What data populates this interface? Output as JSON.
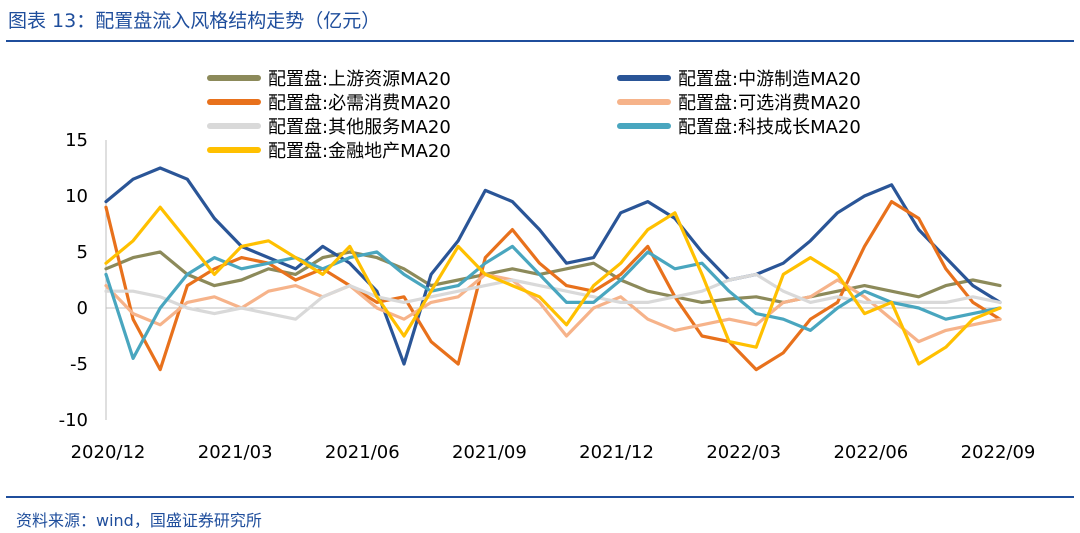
{
  "header": {
    "title": "图表 13：配置盘流入风格结构走势（亿元）"
  },
  "footer": {
    "source": "资料来源：wind，国盛证券研究所"
  },
  "chart_data": {
    "type": "line",
    "title": "配置盘流入风格结构走势（亿元）",
    "xlabel": "",
    "ylabel": "",
    "ylim": [
      -10,
      15
    ],
    "yticks": [
      15,
      10,
      5,
      0,
      -5,
      -10
    ],
    "xticks": [
      "2020/12",
      "2021/03",
      "2021/06",
      "2021/09",
      "2021/12",
      "2022/03",
      "2022/06",
      "2022/09"
    ],
    "grid": false,
    "legend_position": "top",
    "series": [
      {
        "name": "配置盘:上游资源MA20",
        "color": "#8c8a5a",
        "values": [
          3.5,
          4.5,
          5,
          3,
          2,
          2.5,
          3.5,
          3,
          4.5,
          5,
          4.5,
          3.5,
          2,
          2.5,
          3,
          3.5,
          3,
          3.5,
          4,
          2.5,
          1.5,
          1,
          0.5,
          0.8,
          1,
          0.5,
          1,
          1.5,
          2,
          1.5,
          1,
          2,
          2.5,
          2
        ]
      },
      {
        "name": "配置盘:中游制造MA20",
        "color": "#2a5597",
        "values": [
          9.5,
          11.5,
          12.5,
          11.5,
          8,
          5.5,
          4.5,
          3.5,
          5.5,
          4,
          1.5,
          -5,
          3,
          6,
          10.5,
          9.5,
          7,
          4,
          4.5,
          8.5,
          9.5,
          8,
          5,
          2.5,
          3,
          4,
          6,
          8.5,
          10,
          11,
          7,
          4.5,
          2,
          0.5
        ]
      },
      {
        "name": "配置盘:必需消费MA20",
        "color": "#e8711c",
        "values": [
          9,
          -1,
          -5.5,
          2,
          3.5,
          4.5,
          4,
          2.5,
          3.5,
          2,
          0.5,
          1,
          -3,
          -5,
          4.5,
          7,
          4,
          2,
          1.5,
          3,
          5.5,
          1,
          -2.5,
          -3,
          -5.5,
          -4,
          -1,
          0.5,
          5.5,
          9.5,
          8,
          3.5,
          0.5,
          -1
        ]
      },
      {
        "name": "配置盘:可选消费MA20",
        "color": "#f6b38a",
        "values": [
          2,
          -0.5,
          -1.5,
          0.5,
          1,
          0,
          1.5,
          2,
          1,
          2,
          0,
          -1,
          0.5,
          1,
          3,
          2.5,
          0.5,
          -2.5,
          0,
          1,
          -1,
          -2,
          -1.5,
          -1,
          -1.5,
          0.5,
          1,
          2.5,
          1,
          -1,
          -3,
          -2,
          -1.5,
          -1
        ]
      },
      {
        "name": "配置盘:其他服务MA20",
        "color": "#d9d9d9",
        "values": [
          1.5,
          1.5,
          1,
          0,
          -0.5,
          0,
          -0.5,
          -1,
          1,
          2,
          1,
          0.5,
          1,
          1.5,
          2,
          2.5,
          2,
          1.5,
          1,
          0.5,
          0.5,
          1,
          1.5,
          2.5,
          3,
          1.5,
          0.5,
          1,
          0.5,
          0.5,
          0.5,
          0.5,
          1,
          0.5
        ]
      },
      {
        "name": "配置盘:科技成长MA20",
        "color": "#49a6bf",
        "values": [
          3,
          -4.5,
          0,
          3,
          4.5,
          3.5,
          4,
          4.5,
          3.5,
          4.5,
          5,
          3,
          1.5,
          2,
          4,
          5.5,
          3,
          0.5,
          0.5,
          2.5,
          5,
          3.5,
          4,
          1.5,
          -0.5,
          -1,
          -2,
          0,
          1.5,
          0.5,
          0,
          -1,
          -0.5,
          0
        ]
      },
      {
        "name": "配置盘:金融地产MA20",
        "color": "#ffc000",
        "values": [
          4,
          6,
          9,
          6,
          3,
          5.5,
          6,
          4.5,
          3,
          5.5,
          1,
          -2.5,
          1.5,
          5.5,
          3,
          2,
          1,
          -1.5,
          2,
          4,
          7,
          8.5,
          3,
          -3,
          -3.5,
          3,
          4.5,
          3,
          -0.5,
          0.5,
          -5,
          -3.5,
          -1,
          0
        ]
      }
    ]
  }
}
